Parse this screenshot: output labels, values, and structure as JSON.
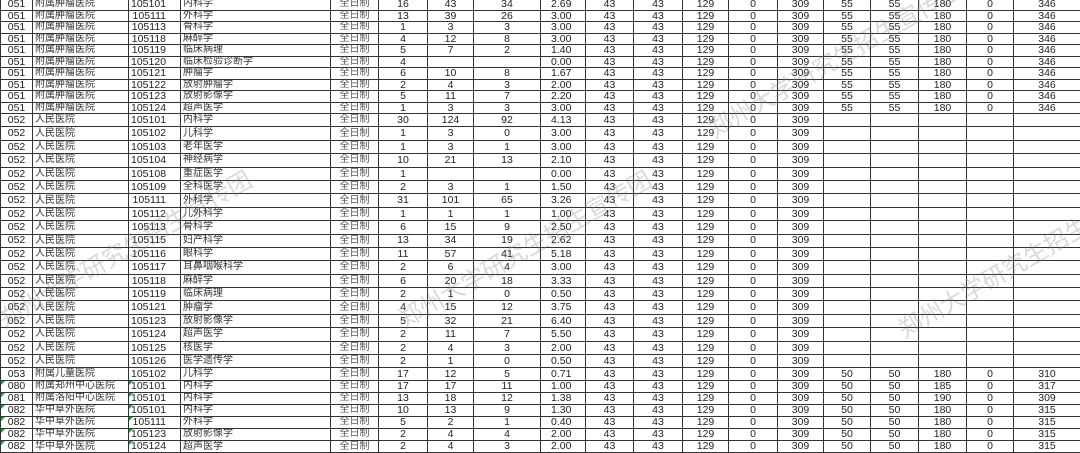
{
  "watermark": "郑州大学研究生招生宣传团",
  "accent_flag_color": "#1a9a3a",
  "rows": [
    [
      "051",
      "附属肿瘤医院",
      "105101",
      "内科学",
      "全日制",
      "16",
      "43",
      "34",
      "2.69",
      "43",
      "43",
      "129",
      "0",
      "309",
      "55",
      "55",
      "180",
      "0",
      "346"
    ],
    [
      "051",
      "附属肿瘤医院",
      "105111",
      "外科学",
      "全日制",
      "13",
      "39",
      "26",
      "3.00",
      "43",
      "43",
      "129",
      "0",
      "309",
      "55",
      "55",
      "180",
      "0",
      "346"
    ],
    [
      "051",
      "附属肿瘤医院",
      "105113",
      "骨科学",
      "全日制",
      "1",
      "3",
      "3",
      "3.00",
      "43",
      "43",
      "129",
      "0",
      "309",
      "55",
      "55",
      "180",
      "0",
      "346"
    ],
    [
      "051",
      "附属肿瘤医院",
      "105118",
      "麻醉学",
      "全日制",
      "4",
      "12",
      "8",
      "3.00",
      "43",
      "43",
      "129",
      "0",
      "309",
      "55",
      "55",
      "180",
      "0",
      "346"
    ],
    [
      "051",
      "附属肿瘤医院",
      "105119",
      "临床病理",
      "全日制",
      "5",
      "7",
      "2",
      "1.40",
      "43",
      "43",
      "129",
      "0",
      "309",
      "55",
      "55",
      "180",
      "0",
      "346"
    ],
    [
      "051",
      "附属肿瘤医院",
      "105120",
      "临床检验诊断学",
      "全日制",
      "4",
      "",
      "",
      "0.00",
      "43",
      "43",
      "129",
      "0",
      "309",
      "55",
      "55",
      "180",
      "0",
      "346"
    ],
    [
      "051",
      "附属肿瘤医院",
      "105121",
      "肿瘤学",
      "全日制",
      "6",
      "10",
      "8",
      "1.67",
      "43",
      "43",
      "129",
      "0",
      "309",
      "55",
      "55",
      "180",
      "0",
      "346"
    ],
    [
      "051",
      "附属肿瘤医院",
      "105122",
      "放射肿瘤学",
      "全日制",
      "2",
      "4",
      "3",
      "2.00",
      "43",
      "43",
      "129",
      "0",
      "309",
      "55",
      "55",
      "180",
      "0",
      "346"
    ],
    [
      "051",
      "附属肿瘤医院",
      "105123",
      "放射影像学",
      "全日制",
      "5",
      "11",
      "7",
      "2.20",
      "43",
      "43",
      "129",
      "0",
      "309",
      "55",
      "55",
      "180",
      "0",
      "346"
    ],
    [
      "051",
      "附属肿瘤医院",
      "105124",
      "超声医学",
      "全日制",
      "1",
      "3",
      "3",
      "3.00",
      "43",
      "43",
      "129",
      "0",
      "309",
      "55",
      "55",
      "180",
      "0",
      "346"
    ],
    [
      "052",
      "人民医院",
      "105101",
      "内科学",
      "全日制",
      "30",
      "124",
      "92",
      "4.13",
      "43",
      "43",
      "129",
      "0",
      "309",
      "",
      "",
      "",
      "",
      ""
    ],
    [
      "052",
      "人民医院",
      "105102",
      "儿科学",
      "全日制",
      "1",
      "3",
      "0",
      "3.00",
      "43",
      "43",
      "129",
      "0",
      "309",
      "",
      "",
      "",
      "",
      ""
    ],
    [
      "052",
      "人民医院",
      "105103",
      "老年医学",
      "全日制",
      "1",
      "3",
      "1",
      "3.00",
      "43",
      "43",
      "129",
      "0",
      "309",
      "",
      "",
      "",
      "",
      ""
    ],
    [
      "052",
      "人民医院",
      "105104",
      "神经病学",
      "全日制",
      "10",
      "21",
      "13",
      "2.10",
      "43",
      "43",
      "129",
      "0",
      "309",
      "",
      "",
      "",
      "",
      ""
    ],
    [
      "052",
      "人民医院",
      "105108",
      "重症医学",
      "全日制",
      "1",
      "",
      "",
      "0.00",
      "43",
      "43",
      "129",
      "0",
      "309",
      "",
      "",
      "",
      "",
      ""
    ],
    [
      "052",
      "人民医院",
      "105109",
      "全科医学",
      "全日制",
      "2",
      "3",
      "1",
      "1.50",
      "43",
      "43",
      "129",
      "0",
      "309",
      "",
      "",
      "",
      "",
      ""
    ],
    [
      "052",
      "人民医院",
      "105111",
      "外科学",
      "全日制",
      "31",
      "101",
      "65",
      "3.26",
      "43",
      "43",
      "129",
      "0",
      "309",
      "",
      "",
      "",
      "",
      ""
    ],
    [
      "052",
      "人民医院",
      "105112",
      "儿外科学",
      "全日制",
      "1",
      "1",
      "1",
      "1.00",
      "43",
      "43",
      "129",
      "0",
      "309",
      "",
      "",
      "",
      "",
      ""
    ],
    [
      "052",
      "人民医院",
      "105113",
      "骨科学",
      "全日制",
      "6",
      "15",
      "9",
      "2.50",
      "43",
      "43",
      "129",
      "0",
      "309",
      "",
      "",
      "",
      "",
      ""
    ],
    [
      "052",
      "人民医院",
      "105115",
      "妇产科学",
      "全日制",
      "13",
      "34",
      "19",
      "2.62",
      "43",
      "43",
      "129",
      "0",
      "309",
      "",
      "",
      "",
      "",
      ""
    ],
    [
      "052",
      "人民医院",
      "105116",
      "眼科学",
      "全日制",
      "11",
      "57",
      "41",
      "5.18",
      "43",
      "43",
      "129",
      "0",
      "309",
      "",
      "",
      "",
      "",
      ""
    ],
    [
      "052",
      "人民医院",
      "105117",
      "耳鼻咽喉科学",
      "全日制",
      "2",
      "6",
      "4",
      "3.00",
      "43",
      "43",
      "129",
      "0",
      "309",
      "",
      "",
      "",
      "",
      ""
    ],
    [
      "052",
      "人民医院",
      "105118",
      "麻醉学",
      "全日制",
      "6",
      "20",
      "18",
      "3.33",
      "43",
      "43",
      "129",
      "0",
      "309",
      "",
      "",
      "",
      "",
      ""
    ],
    [
      "052",
      "人民医院",
      "105119",
      "临床病理",
      "全日制",
      "2",
      "1",
      "0",
      "0.50",
      "43",
      "43",
      "129",
      "0",
      "309",
      "",
      "",
      "",
      "",
      ""
    ],
    [
      "052",
      "人民医院",
      "105121",
      "肿瘤学",
      "全日制",
      "4",
      "15",
      "12",
      "3.75",
      "43",
      "43",
      "129",
      "0",
      "309",
      "",
      "",
      "",
      "",
      ""
    ],
    [
      "052",
      "人民医院",
      "105123",
      "放射影像学",
      "全日制",
      "5",
      "32",
      "21",
      "6.40",
      "43",
      "43",
      "129",
      "0",
      "309",
      "",
      "",
      "",
      "",
      ""
    ],
    [
      "052",
      "人民医院",
      "105124",
      "超声医学",
      "全日制",
      "2",
      "11",
      "7",
      "5.50",
      "43",
      "43",
      "129",
      "0",
      "309",
      "",
      "",
      "",
      "",
      ""
    ],
    [
      "052",
      "人民医院",
      "105125",
      "核医学",
      "全日制",
      "2",
      "4",
      "3",
      "2.00",
      "43",
      "43",
      "129",
      "0",
      "309",
      "",
      "",
      "",
      "",
      ""
    ],
    [
      "052",
      "人民医院",
      "105126",
      "医学遗传学",
      "全日制",
      "2",
      "1",
      "0",
      "0.50",
      "43",
      "43",
      "129",
      "0",
      "309",
      "",
      "",
      "",
      "",
      ""
    ],
    [
      "053",
      "附属儿童医院",
      "105102",
      "儿科学",
      "全日制",
      "17",
      "12",
      "5",
      "0.71",
      "43",
      "43",
      "129",
      "0",
      "309",
      "50",
      "50",
      "180",
      "0",
      "310"
    ],
    [
      "080",
      "附属郑州中心医院",
      "105101",
      "内科学",
      "全日制",
      "17",
      "17",
      "11",
      "1.00",
      "43",
      "43",
      "129",
      "0",
      "309",
      "50",
      "50",
      "185",
      "0",
      "317"
    ],
    [
      "081",
      "附属洛阳中心医院",
      "105101",
      "内科学",
      "全日制",
      "13",
      "18",
      "12",
      "1.38",
      "43",
      "43",
      "129",
      "0",
      "309",
      "50",
      "50",
      "190",
      "0",
      "309"
    ],
    [
      "082",
      "华中阜外医院",
      "105101",
      "内科学",
      "全日制",
      "10",
      "13",
      "9",
      "1.30",
      "43",
      "43",
      "129",
      "0",
      "309",
      "50",
      "50",
      "180",
      "0",
      "315"
    ],
    [
      "082",
      "华中阜外医院",
      "105111",
      "外科学",
      "全日制",
      "5",
      "2",
      "1",
      "0.40",
      "43",
      "43",
      "129",
      "0",
      "309",
      "50",
      "50",
      "180",
      "0",
      "315"
    ],
    [
      "082",
      "华中阜外医院",
      "105123",
      "放射影像学",
      "全日制",
      "2",
      "4",
      "4",
      "2.00",
      "43",
      "43",
      "129",
      "0",
      "309",
      "50",
      "50",
      "180",
      "0",
      "315"
    ],
    [
      "082",
      "华中阜外医院",
      "105124",
      "超声医学",
      "全日制",
      "2",
      "4",
      "3",
      "2.00",
      "43",
      "43",
      "129",
      "0",
      "309",
      "50",
      "50",
      "180",
      "0",
      "315"
    ]
  ]
}
